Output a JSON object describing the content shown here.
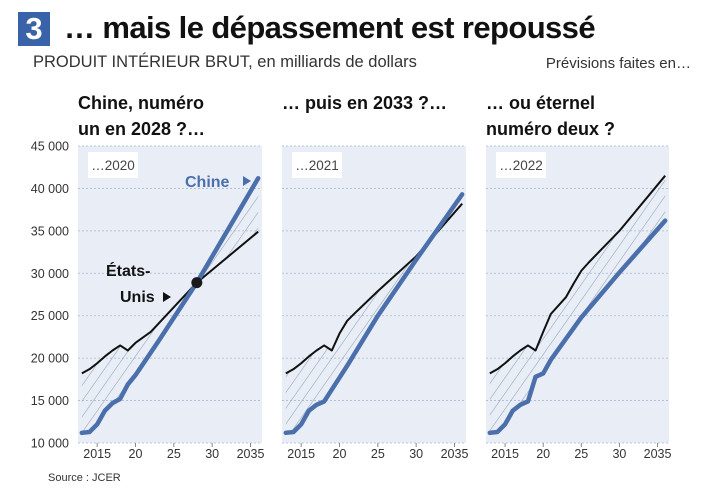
{
  "header": {
    "badge": "3",
    "title": "… mais le dépassement est repoussé",
    "subtitle": "PRODUIT INTÉRIEUR BRUT, en milliards de dollars",
    "forecast_label": "Prévisions faites en…"
  },
  "source": "Source : JCER",
  "colors": {
    "china": "#4a6fab",
    "us": "#111111",
    "panel_bg": "#e9eef6",
    "hatch": "#8ea0b8",
    "badge": "#3a62a8"
  },
  "chart_data": {
    "type": "line",
    "ylim": [
      10000,
      45000
    ],
    "xlim": [
      2012.5,
      2036.5
    ],
    "y_ticks": [
      10000,
      15000,
      20000,
      25000,
      30000,
      35000,
      40000,
      45000
    ],
    "y_tick_labels": [
      "10 000",
      "15 000",
      "20 000",
      "25 000",
      "30 000",
      "35 000",
      "40 000",
      "45 000"
    ],
    "x_ticks": [
      2015,
      2020,
      2025,
      2030,
      2035
    ],
    "x_tick_labels": [
      "2015",
      "20",
      "25",
      "30",
      "2035"
    ],
    "grid": true,
    "panels": [
      {
        "title_lines": [
          "Chine, numéro",
          "un en 2028 ?…"
        ],
        "forecast_year": "…2020",
        "series": [
          {
            "name": "Chine",
            "x": [
              2013,
              2014,
              2015,
              2016,
              2017,
              2018,
              2019,
              2020,
              2023,
              2028,
              2036
            ],
            "values": [
              11200,
              11300,
              12200,
              13800,
              14700,
              15200,
              16900,
              18000,
              22000,
              28900,
              41200
            ]
          },
          {
            "name": "États-Unis",
            "x": [
              2013,
              2014,
              2015,
              2016,
              2017,
              2018,
              2019,
              2020,
              2022,
              2028,
              2036
            ],
            "values": [
              18200,
              18700,
              19400,
              20200,
              20900,
              21500,
              20900,
              21800,
              23100,
              28900,
              34900
            ]
          }
        ],
        "crossover": {
          "x": 2028,
          "y": 28900
        },
        "labels": {
          "china": "Chine",
          "us_line1": "États-",
          "us_line2": "Unis"
        }
      },
      {
        "title_lines": [
          "… puis en 2033 ?…"
        ],
        "forecast_year": "…2021",
        "series": [
          {
            "name": "Chine",
            "x": [
              2013,
              2014,
              2015,
              2016,
              2017,
              2018,
              2019,
              2020,
              2021,
              2025,
              2030,
              2036
            ],
            "values": [
              11200,
              11300,
              12200,
              13800,
              14500,
              14900,
              16300,
              17700,
              19100,
              25000,
              31600,
              39300
            ]
          },
          {
            "name": "États-Unis",
            "x": [
              2013,
              2014,
              2015,
              2016,
              2017,
              2018,
              2019,
              2020,
              2021,
              2022,
              2025,
              2030,
              2036
            ],
            "values": [
              18200,
              18700,
              19400,
              20200,
              20900,
              21500,
              20900,
              22900,
              24400,
              25300,
              27900,
              32000,
              38200
            ]
          }
        ]
      },
      {
        "title_lines": [
          "… ou éternel",
          "numéro deux ?"
        ],
        "forecast_year": "…2022",
        "series": [
          {
            "name": "Chine",
            "x": [
              2013,
              2014,
              2015,
              2016,
              2017,
              2018,
              2019,
              2020,
              2021,
              2025,
              2030,
              2036
            ],
            "values": [
              11200,
              11300,
              12200,
              13800,
              14500,
              14900,
              17800,
              18200,
              19800,
              24800,
              30100,
              36200
            ]
          },
          {
            "name": "États-Unis",
            "x": [
              2013,
              2014,
              2015,
              2016,
              2017,
              2018,
              2019,
              2020,
              2021,
              2022,
              2023,
              2024,
              2025,
              2026,
              2030,
              2036
            ],
            "values": [
              18200,
              18700,
              19400,
              20200,
              20900,
              21500,
              20900,
              23100,
              25200,
              26200,
              27200,
              28800,
              30300,
              31300,
              35000,
              41500
            ]
          }
        ]
      }
    ]
  }
}
